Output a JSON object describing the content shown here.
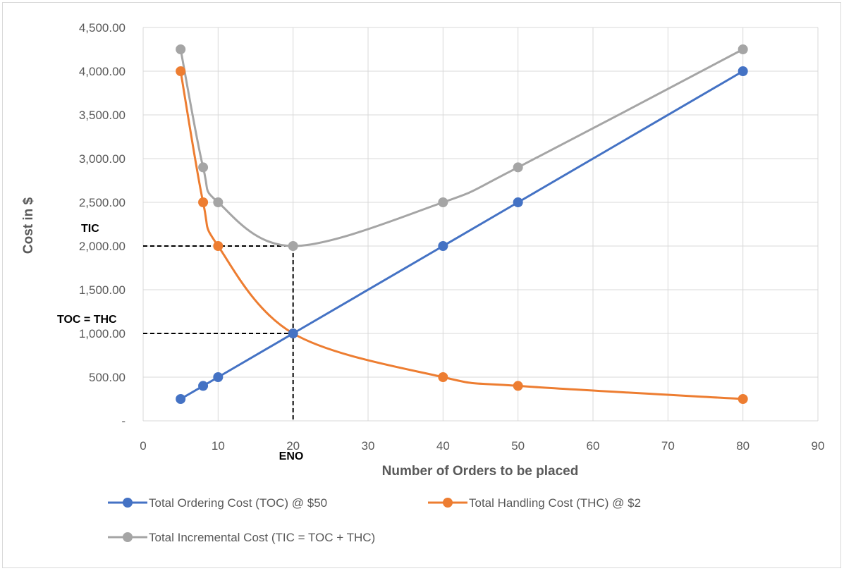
{
  "chart_data": {
    "type": "line",
    "title": "",
    "xlabel": "Number of Orders to be placed",
    "ylabel": "Cost in $",
    "xlim": [
      0,
      90
    ],
    "ylim": [
      0,
      4500
    ],
    "x_ticks": [
      0,
      10,
      20,
      30,
      40,
      50,
      60,
      70,
      80,
      90
    ],
    "y_ticks": [
      0,
      500,
      1000,
      1500,
      2000,
      2500,
      3000,
      3500,
      4000,
      4500
    ],
    "y_tick_labels": [
      "-",
      "500.00",
      "1,000.00",
      "1,500.00",
      "2,000.00",
      "2,500.00",
      "3,000.00",
      "3,500.00",
      "4,000.00",
      "4,500.00"
    ],
    "grid": "vertical and horizontal",
    "legend_position": "bottom",
    "series": [
      {
        "name": "Total Ordering Cost (TOC) @ $50",
        "color": "#4472C4",
        "smooth": false,
        "x": [
          5,
          8,
          10,
          20,
          40,
          50,
          80
        ],
        "values": [
          250,
          400,
          500,
          1000,
          2000,
          2500,
          4000
        ]
      },
      {
        "name": "Total Handling Cost (THC) @ $2",
        "color": "#ED7D31",
        "smooth": true,
        "x": [
          5,
          8,
          10,
          20,
          40,
          50,
          80
        ],
        "values": [
          4000,
          2500,
          2000,
          1000,
          500,
          400,
          250
        ]
      },
      {
        "name": "Total Incremental Cost (TIC = TOC + THC)",
        "color": "#A5A5A5",
        "smooth": true,
        "x": [
          5,
          8,
          10,
          20,
          40,
          50,
          80
        ],
        "values": [
          4250,
          2900,
          2500,
          2000,
          2500,
          2900,
          4250
        ]
      }
    ],
    "annotations": [
      {
        "text": "TIC",
        "x": 0,
        "y": 2000
      },
      {
        "text": "TOC = THC",
        "x": 0,
        "y": 1000
      },
      {
        "text": "ENO",
        "x": 20,
        "y": 0
      }
    ],
    "reference_lines": [
      {
        "from": [
          0,
          2000
        ],
        "to": [
          20,
          2000
        ]
      },
      {
        "from": [
          0,
          1000
        ],
        "to": [
          20,
          1000
        ]
      },
      {
        "from": [
          20,
          2000
        ],
        "to": [
          20,
          0
        ]
      }
    ]
  }
}
